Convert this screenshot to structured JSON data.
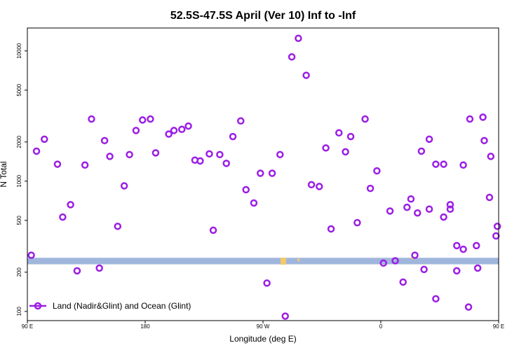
{
  "chart_data": {
    "type": "scatter",
    "title": "52.5S-47.5S April (Ver 10)   Inf to -Inf",
    "xlabel": "Longitude (deg E)",
    "ylabel": "N Total",
    "xlim": [
      90,
      450
    ],
    "ylim": [
      85,
      15000
    ],
    "y_scale": "log",
    "x_ticks": [
      {
        "value": 90,
        "label": "90 E"
      },
      {
        "value": 180,
        "label": "180"
      },
      {
        "value": 270,
        "label": "90 W"
      },
      {
        "value": 360,
        "label": "0"
      },
      {
        "value": 450,
        "label": "90 E"
      }
    ],
    "y_ticks": [
      {
        "value": 100,
        "label": "100"
      },
      {
        "value": 200,
        "label": "200"
      },
      {
        "value": 500,
        "label": "500"
      },
      {
        "value": 1000,
        "label": "1000"
      },
      {
        "value": 2000,
        "label": "2000"
      },
      {
        "value": 5000,
        "label": "5000"
      },
      {
        "value": 10000,
        "label": "10000"
      }
    ],
    "band": {
      "y_low": 230,
      "y_high": 258,
      "color": "#a0b6dc"
    },
    "land_color": "#f5c96a",
    "land_patches": [
      {
        "x": 285,
        "y": 243
      },
      {
        "x": 298,
        "y": 240
      },
      {
        "x": 385,
        "y": 248
      }
    ],
    "legend": {
      "position": "bottom-left",
      "label": "Land (Nadir&Glint) and Ocean (Glint)"
    },
    "series": [
      {
        "name": "Land (Nadir&Glint) and Ocean (Glint)",
        "color": "#9b1ee6",
        "marker": "open-circle",
        "x": [
          93,
          97,
          103,
          113,
          117,
          123,
          128,
          134,
          139,
          145,
          149,
          153,
          159,
          164,
          168,
          173,
          178,
          184,
          188,
          198,
          202,
          208,
          213,
          218,
          222,
          229,
          232,
          237,
          242,
          247,
          253,
          257,
          263,
          268,
          273,
          277,
          283,
          287,
          292,
          297,
          303,
          307,
          313,
          318,
          322,
          328,
          333,
          337,
          342,
          348,
          352,
          357,
          362,
          367,
          371,
          377,
          383,
          388,
          393,
          397,
          402,
          408,
          413,
          418,
          423,
          427,
          433,
          438,
          443,
          448
        ],
        "y": [
          270,
          1700,
          2100,
          1350,
          530,
          660,
          205,
          1330,
          3000,
          215,
          2050,
          1550,
          450,
          920,
          1600,
          2450,
          2950,
          3000,
          1650,
          2300,
          2450,
          2500,
          2650,
          1450,
          1430,
          1620,
          420,
          1600,
          1370,
          2200,
          2900,
          860,
          680,
          1150,
          165,
          1150,
          1600,
          92,
          9000,
          12500,
          6500,
          940,
          910,
          1800,
          430,
          2350,
          1680,
          2200,
          480,
          3000,
          880,
          1200,
          235,
          590,
          245,
          168,
          730,
          570,
          210,
          610,
          125,
          1350,
          610,
          320,
          300,
          108,
          320,
          3100,
          750,
          380
        ]
      },
      {
        "name": "",
        "color": "#9b1ee6",
        "marker": "open-circle",
        "x": [
          380,
          386,
          391,
          397,
          402,
          408,
          413,
          418,
          423,
          428,
          434,
          439,
          444,
          449
        ],
        "y": [
          630,
          270,
          1700,
          2100,
          1350,
          530,
          660,
          205,
          1330,
          3000,
          215,
          2050,
          1550,
          450
        ]
      }
    ]
  }
}
